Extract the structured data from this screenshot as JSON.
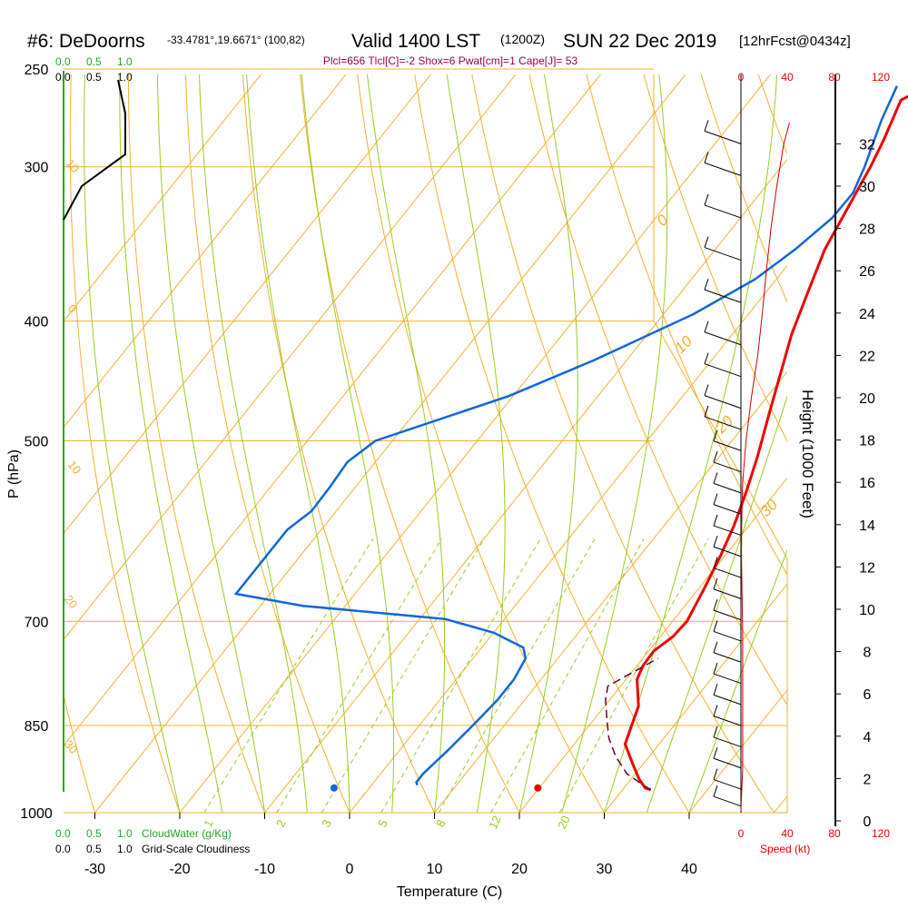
{
  "header": {
    "station": "#6: DeDoorns",
    "coords": "-33.4781°,19.6671° (100,82)",
    "valid": "Valid 1400 LST",
    "utc": "(1200Z)",
    "date": "SUN 22 Dec 2019",
    "fcst": "[12hrFcst@0434z]"
  },
  "params_line": "Plcl=656 Tlcl[C]=-2 Shox=6 Pwat[cm]=1 Cape[J]= 53",
  "cloud_top_green": [
    "0.0",
    "0.5",
    "1.0"
  ],
  "cloud_top_black": [
    "0.0",
    "0.5",
    "1.0"
  ],
  "cloud_bottom_green": [
    "0.0",
    "0.5",
    "1.0"
  ],
  "cloud_bottom_green_title": "CloudWater (g/Kg)",
  "cloud_bottom_black": [
    "0.0",
    "0.5",
    "1.0"
  ],
  "cloud_bottom_black_title": "Grid-Scale Cloudiness",
  "speed_top": [
    "0",
    "40",
    "80",
    "120"
  ],
  "speed_bottom": [
    "0",
    "40",
    "80",
    "120"
  ],
  "speed_title": "Speed (kt)",
  "colors": {
    "temperature": "#ee0000",
    "dewpoint": "#1166dd",
    "parcel": "#660033",
    "isobar": "#f0b030",
    "dry_adiabat": "#f0b030",
    "moist_adiabat": "#99cc22",
    "mixing_ratio": "#99cc22",
    "cloud_water": "#22aa22",
    "cloudiness": "#000000",
    "wind_speed": "#cc0000"
  },
  "adiabat_labels": [
    "0",
    "10",
    "20",
    "30",
    "10",
    "0",
    "10",
    "20",
    "30"
  ],
  "mixing_labels": [
    "1",
    "2",
    "3",
    "5",
    "8",
    "12",
    "20"
  ],
  "chart_data": {
    "type": "line",
    "title": "",
    "xlabel": "Temperature (C)",
    "ylabel": "P (hPa)",
    "y2label": "Height (1000 Feet)",
    "x_ticks": [
      "-30",
      "-20",
      "-10",
      "0",
      "10",
      "20",
      "30",
      "40"
    ],
    "y_ticks": [
      "250",
      "300",
      "400",
      "500",
      "700",
      "850",
      "1000"
    ],
    "y2_ticks": [
      "0",
      "2",
      "4",
      "6",
      "8",
      "10",
      "12",
      "14",
      "16",
      "18",
      "20",
      "22",
      "24",
      "26",
      "28",
      "30",
      "32"
    ],
    "xlim": [
      -34,
      45
    ],
    "ylim": [
      1000,
      250
    ],
    "y2lim": [
      0,
      33
    ],
    "series": [
      {
        "points": [
          [
            33.3,
            958
          ],
          [
            32.5,
            955
          ],
          [
            31,
            940
          ],
          [
            28.5,
            910
          ],
          [
            26,
            880
          ],
          [
            25,
            850
          ],
          [
            24,
            820
          ],
          [
            21.3,
            780
          ],
          [
            20.7,
            760
          ],
          [
            20.6,
            740
          ],
          [
            21.5,
            720
          ],
          [
            21.7,
            700
          ],
          [
            20.7,
            660
          ],
          [
            19.5,
            620
          ],
          [
            18.2,
            585
          ],
          [
            16.5,
            550
          ],
          [
            14.5,
            515
          ],
          [
            11.8,
            475
          ],
          [
            9.3,
            440
          ],
          [
            7,
            410
          ],
          [
            5,
            380
          ],
          [
            2.9,
            350
          ],
          [
            1.5,
            320
          ],
          [
            0.5,
            300
          ],
          [
            -0.5,
            285
          ],
          [
            -2.2,
            265
          ],
          [
            0.1,
            256
          ]
        ]
      },
      {
        "points": [
          [
            5.4,
            950
          ],
          [
            5,
            945
          ],
          [
            5,
            930
          ],
          [
            5.7,
            890
          ],
          [
            6.3,
            850
          ],
          [
            6.8,
            810
          ],
          [
            6.8,
            780
          ],
          [
            6.2,
            750
          ],
          [
            4.9,
            735
          ],
          [
            0,
            715
          ],
          [
            -7,
            697
          ],
          [
            -25,
            680
          ],
          [
            -34,
            665
          ],
          [
            -34,
            590
          ],
          [
            -32.9,
            570
          ],
          [
            -33,
            545
          ],
          [
            -33.3,
            520
          ],
          [
            -32,
            500
          ],
          [
            -20.5,
            460
          ],
          [
            -13.8,
            430
          ],
          [
            -6.5,
            395
          ],
          [
            -2.5,
            370
          ],
          [
            -0.6,
            350
          ],
          [
            0.8,
            330
          ],
          [
            0.9,
            315
          ],
          [
            -0.2,
            300
          ],
          [
            -2.6,
            275
          ],
          [
            -4,
            258
          ]
        ]
      },
      {
        "points": [
          [
            33.3,
            958
          ],
          [
            32.3,
            952
          ],
          [
            29,
            930
          ],
          [
            26,
            900
          ],
          [
            23.5,
            870
          ],
          [
            21.5,
            840
          ],
          [
            19.5,
            810
          ],
          [
            18.5,
            790
          ],
          [
            21.8,
            750
          ]
        ]
      }
    ],
    "surface_points": [
      [
        10.5,
        955
      ],
      [
        34.5,
        955
      ]
    ],
    "wind_speed_profile": [
      [
        0,
        0.5
      ],
      [
        1.5,
        2.5
      ],
      [
        1.6,
        6
      ],
      [
        1.5,
        9
      ],
      [
        0.9,
        11
      ],
      [
        0.5,
        12.5
      ],
      [
        0.6,
        14
      ],
      [
        1.5,
        16
      ],
      [
        4.5,
        18
      ],
      [
        9,
        20
      ],
      [
        14.5,
        22
      ],
      [
        18.5,
        24
      ],
      [
        22,
        26
      ],
      [
        26,
        28
      ],
      [
        31,
        30
      ],
      [
        37,
        32
      ],
      [
        42,
        33
      ]
    ],
    "wind_barb_heights": [
      0.7,
      1.5,
      2.5,
      3.5,
      4.5,
      5.5,
      6.5,
      7.5,
      8.5,
      9.5,
      10.5,
      11.5,
      12.5,
      13.5,
      14.5,
      15.5,
      16.5,
      17.5,
      18.5,
      19.5,
      21,
      22.5,
      24.5,
      26.5,
      28.5,
      30.5,
      32
    ]
  }
}
